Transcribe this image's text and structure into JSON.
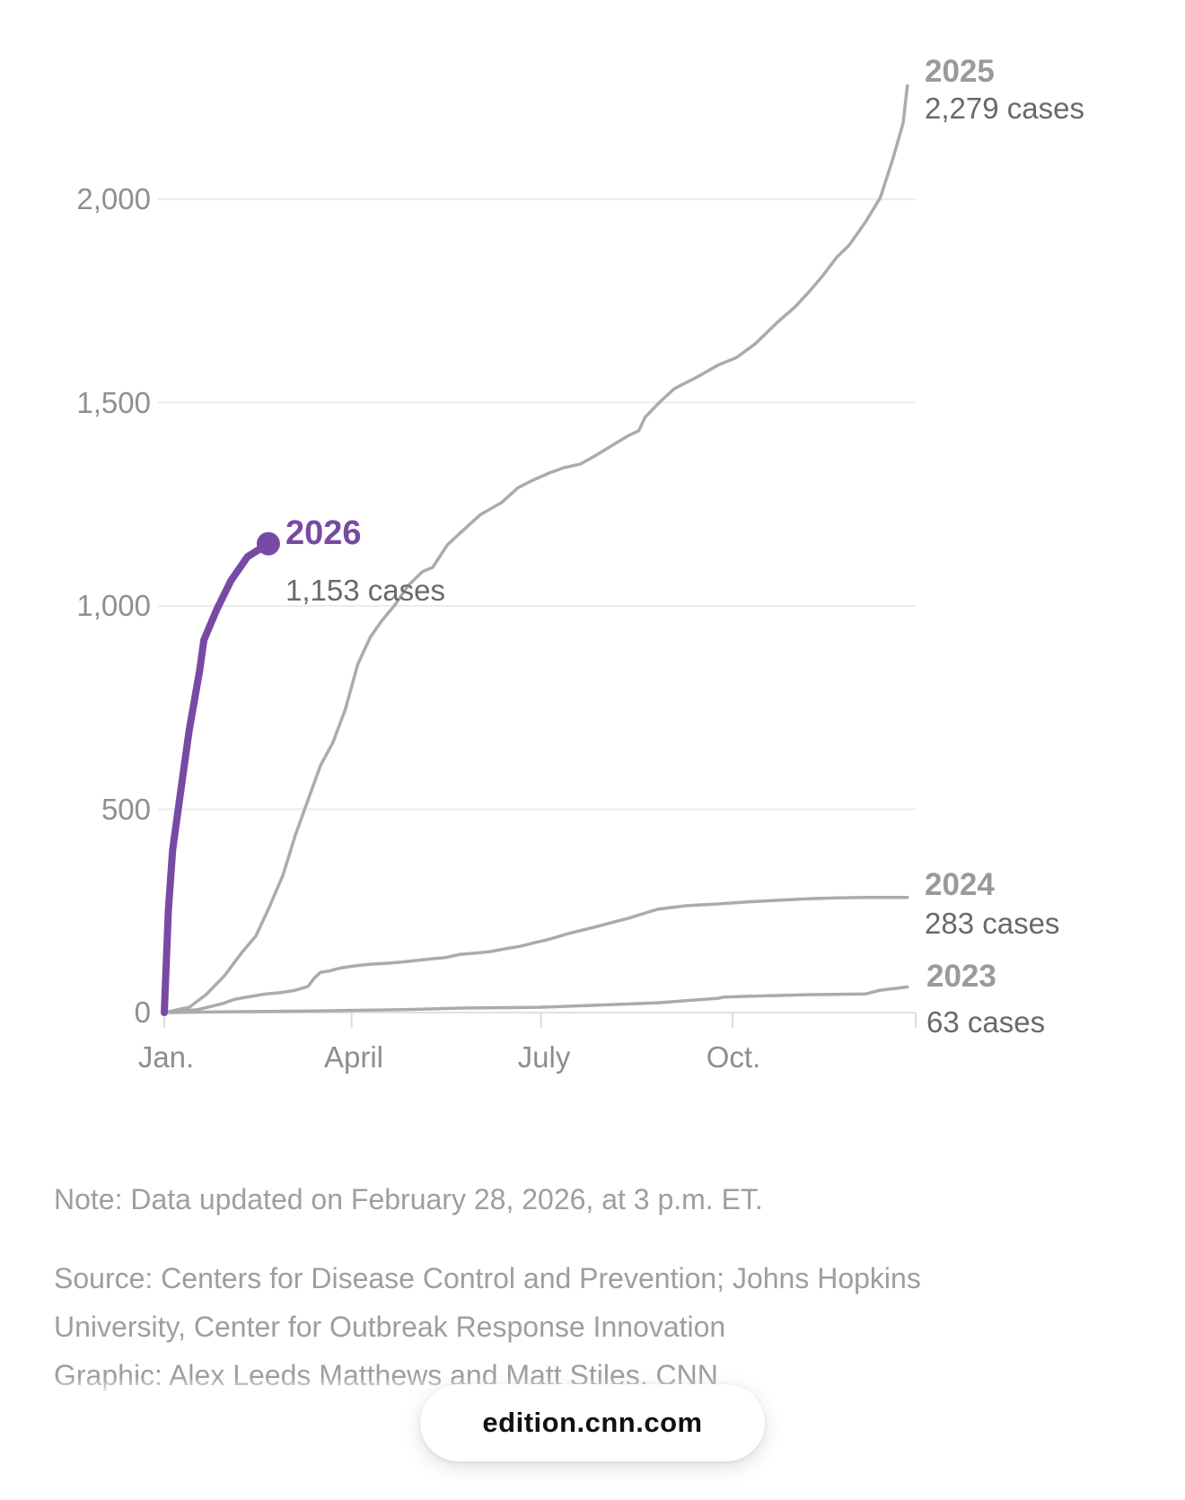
{
  "chart_data": {
    "type": "line",
    "title": "",
    "xlabel": "",
    "ylabel": "",
    "grid": true,
    "legend_position": "end-of-line labels",
    "x_axis": {
      "unit": "day of year",
      "domain_days": [
        0,
        361
      ],
      "tick_days": [
        0,
        90,
        181,
        273
      ],
      "tick_labels": [
        "Jan.",
        "April",
        "July",
        "Oct."
      ]
    },
    "y_axis": {
      "tick_values": [
        0,
        500,
        1000,
        1500,
        2000
      ],
      "tick_labels": [
        "0",
        "500",
        "1,000",
        "1,500",
        "2,000"
      ],
      "ylim": [
        0,
        2340
      ]
    },
    "series": [
      {
        "name": "2023",
        "label": "2023",
        "cases_label": "63 cases",
        "final_value": 63,
        "color": "#ababab",
        "highlight": false,
        "points": [
          [
            0,
            0
          ],
          [
            29,
            2
          ],
          [
            72,
            4
          ],
          [
            115,
            7
          ],
          [
            142,
            11
          ],
          [
            180,
            13
          ],
          [
            208,
            18
          ],
          [
            237,
            24
          ],
          [
            266,
            35
          ],
          [
            269,
            38
          ],
          [
            280,
            40
          ],
          [
            309,
            44
          ],
          [
            337,
            46
          ],
          [
            344,
            55
          ],
          [
            357,
            63
          ]
        ]
      },
      {
        "name": "2024",
        "label": "2024",
        "cases_label": "283 cases",
        "final_value": 283,
        "color": "#ababab",
        "highlight": false,
        "points": [
          [
            0,
            0
          ],
          [
            16,
            7
          ],
          [
            28,
            22
          ],
          [
            34,
            33
          ],
          [
            42,
            40
          ],
          [
            49,
            46
          ],
          [
            56,
            49
          ],
          [
            63,
            55
          ],
          [
            69,
            64
          ],
          [
            72,
            84
          ],
          [
            75,
            99
          ],
          [
            79,
            102
          ],
          [
            85,
            110
          ],
          [
            92,
            115
          ],
          [
            99,
            119
          ],
          [
            106,
            121
          ],
          [
            114,
            124
          ],
          [
            121,
            128
          ],
          [
            128,
            132
          ],
          [
            135,
            135
          ],
          [
            142,
            143
          ],
          [
            149,
            146
          ],
          [
            157,
            150
          ],
          [
            164,
            157
          ],
          [
            171,
            163
          ],
          [
            178,
            172
          ],
          [
            184,
            179
          ],
          [
            194,
            194
          ],
          [
            208,
            212
          ],
          [
            223,
            232
          ],
          [
            237,
            254
          ],
          [
            240,
            256
          ],
          [
            251,
            263
          ],
          [
            266,
            267
          ],
          [
            280,
            272
          ],
          [
            294,
            276
          ],
          [
            309,
            280
          ],
          [
            323,
            282
          ],
          [
            337,
            283
          ],
          [
            352,
            283
          ],
          [
            357,
            283
          ]
        ]
      },
      {
        "name": "2025",
        "label": "2025",
        "cases_label": "2,279 cases",
        "final_value": 2279,
        "color": "#ababab",
        "highlight": false,
        "points": [
          [
            0,
            0
          ],
          [
            12,
            13
          ],
          [
            20,
            44
          ],
          [
            29,
            91
          ],
          [
            37,
            146
          ],
          [
            44,
            188
          ],
          [
            50,
            254
          ],
          [
            57,
            338
          ],
          [
            63,
            437
          ],
          [
            70,
            536
          ],
          [
            75,
            607
          ],
          [
            81,
            664
          ],
          [
            87,
            746
          ],
          [
            93,
            857
          ],
          [
            99,
            923
          ],
          [
            104,
            960
          ],
          [
            111,
            1004
          ],
          [
            117,
            1049
          ],
          [
            124,
            1084
          ],
          [
            129,
            1095
          ],
          [
            136,
            1150
          ],
          [
            144,
            1188
          ],
          [
            152,
            1225
          ],
          [
            162,
            1254
          ],
          [
            170,
            1291
          ],
          [
            177,
            1309
          ],
          [
            185,
            1327
          ],
          [
            192,
            1340
          ],
          [
            200,
            1349
          ],
          [
            207,
            1369
          ],
          [
            214,
            1391
          ],
          [
            223,
            1419
          ],
          [
            228,
            1431
          ],
          [
            231,
            1464
          ],
          [
            238,
            1501
          ],
          [
            245,
            1534
          ],
          [
            256,
            1563
          ],
          [
            266,
            1592
          ],
          [
            275,
            1611
          ],
          [
            284,
            1645
          ],
          [
            294,
            1695
          ],
          [
            303,
            1735
          ],
          [
            309,
            1768
          ],
          [
            316,
            1810
          ],
          [
            323,
            1857
          ],
          [
            329,
            1887
          ],
          [
            337,
            1945
          ],
          [
            344,
            2004
          ],
          [
            350,
            2099
          ],
          [
            355,
            2188
          ],
          [
            357,
            2279
          ]
        ]
      },
      {
        "name": "2026",
        "label": "2026",
        "cases_label": "1,153 cases",
        "final_value": 1153,
        "color": "#774AA4",
        "highlight": true,
        "points": [
          [
            0,
            0
          ],
          [
            2,
            254
          ],
          [
            4,
            400
          ],
          [
            8,
            548
          ],
          [
            12,
            695
          ],
          [
            17,
            841
          ],
          [
            19,
            916
          ],
          [
            25,
            989
          ],
          [
            32,
            1062
          ],
          [
            40,
            1121
          ],
          [
            50,
            1153
          ]
        ]
      }
    ],
    "colors": {
      "accent_purple": "#774AA4",
      "line_gray": "#ababab",
      "gridline": "#ececec",
      "baseline": "#e0e0e0"
    }
  },
  "footer": {
    "note": "Note: Data updated on February 28, 2026, at 3 p.m. ET.",
    "source_line1": "Source: Centers for Disease Control and Prevention; Johns Hopkins",
    "source_line2": "University, Center for Outbreak Response Innovation",
    "graphic_line": "Graphic: Alex Leeds Matthews and Matt Stiles, CNN"
  },
  "browser": {
    "url_pill": "edition.cnn.com"
  }
}
